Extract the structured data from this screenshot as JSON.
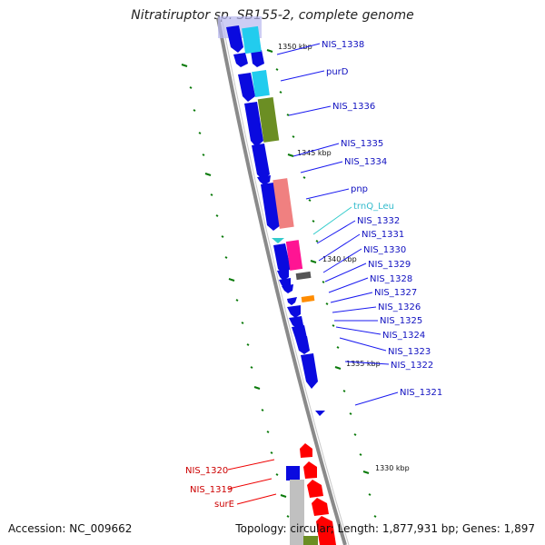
{
  "title": "Nitratiruptor sp. SB155-2, complete genome",
  "footer": {
    "accession": "Accession: NC_009662",
    "summary": "Topology: circular; Length: 1,877,931 bp; Genes: 1,897"
  },
  "colors": {
    "backbone": "#7a7a7a",
    "forward_cds": "#0a0adf",
    "reverse_cds": "#ff0000",
    "trna": "#33cccc",
    "scale_tick": "#0a7a0a",
    "label_blue": "#1010c0",
    "label_red": "#cc0000"
  },
  "scale": [
    {
      "label": "1350 kbp"
    },
    {
      "label": "1345 kbp"
    },
    {
      "label": "1340 kbp"
    },
    {
      "label": "1335 kbp"
    },
    {
      "label": "1330 kbp"
    }
  ],
  "features": [
    {
      "label": "NIS_1338"
    },
    {
      "label": "purD"
    },
    {
      "label": "NIS_1336"
    },
    {
      "label": "NIS_1335"
    },
    {
      "label": "NIS_1334"
    },
    {
      "label": "pnp"
    },
    {
      "label": "trnQ_Leu"
    },
    {
      "label": "NIS_1332"
    },
    {
      "label": "NIS_1331"
    },
    {
      "label": "NIS_1330"
    },
    {
      "label": "NIS_1329"
    },
    {
      "label": "NIS_1328"
    },
    {
      "label": "NIS_1327"
    },
    {
      "label": "NIS_1326"
    },
    {
      "label": "NIS_1325"
    },
    {
      "label": "NIS_1324"
    },
    {
      "label": "NIS_1323"
    },
    {
      "label": "NIS_1322"
    },
    {
      "label": "NIS_1321"
    },
    {
      "label": "NIS_1320"
    },
    {
      "label": "NIS_1319"
    },
    {
      "label": "surE"
    }
  ]
}
